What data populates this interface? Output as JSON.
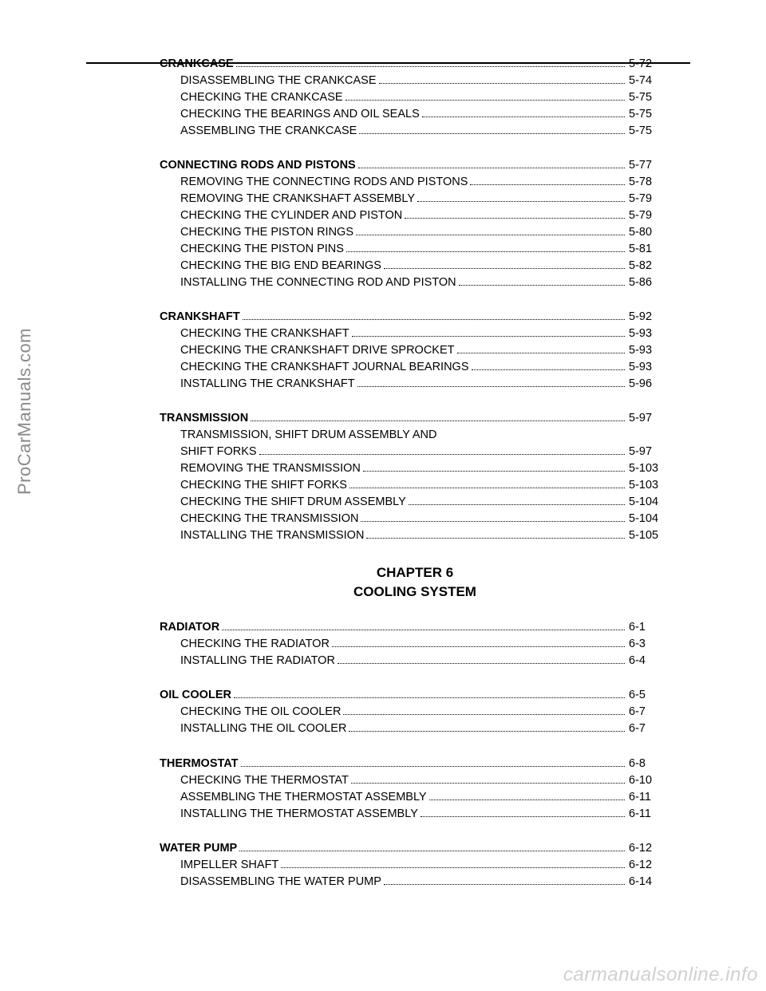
{
  "sideText": "ProCarManuals.com",
  "watermark": "carmanualsonline.info",
  "chapter": {
    "num": "CHAPTER 6",
    "title": "COOLING SYSTEM"
  },
  "sections": [
    {
      "head": {
        "label": "CRANKCASE",
        "page": "5-72"
      },
      "items": [
        {
          "label": "DISASSEMBLING THE CRANKCASE",
          "page": "5-74"
        },
        {
          "label": "CHECKING THE CRANKCASE",
          "page": "5-75"
        },
        {
          "label": "CHECKING THE BEARINGS AND OIL SEALS",
          "page": "5-75"
        },
        {
          "label": "ASSEMBLING THE CRANKCASE",
          "page": "5-75"
        }
      ]
    },
    {
      "head": {
        "label": "CONNECTING RODS AND PISTONS",
        "page": "5-77"
      },
      "items": [
        {
          "label": "REMOVING THE CONNECTING RODS AND PISTONS",
          "page": "5-78"
        },
        {
          "label": "REMOVING THE CRANKSHAFT ASSEMBLY",
          "page": "5-79"
        },
        {
          "label": "CHECKING THE CYLINDER AND PISTON",
          "page": "5-79"
        },
        {
          "label": "CHECKING THE PISTON RINGS",
          "page": "5-80"
        },
        {
          "label": "CHECKING THE PISTON PINS",
          "page": "5-81"
        },
        {
          "label": "CHECKING THE BIG END BEARINGS",
          "page": "5-82"
        },
        {
          "label": "INSTALLING THE CONNECTING ROD AND PISTON",
          "page": "5-86"
        }
      ]
    },
    {
      "head": {
        "label": "CRANKSHAFT",
        "page": "5-92"
      },
      "items": [
        {
          "label": "CHECKING THE CRANKSHAFT",
          "page": "5-93"
        },
        {
          "label": "CHECKING THE CRANKSHAFT DRIVE SPROCKET",
          "page": "5-93"
        },
        {
          "label": "CHECKING THE CRANKSHAFT JOURNAL BEARINGS",
          "page": "5-93"
        },
        {
          "label": "INSTALLING THE CRANKSHAFT",
          "page": "5-96"
        }
      ]
    },
    {
      "head": {
        "label": "TRANSMISSION",
        "page": "5-97"
      },
      "items": [
        {
          "label": "TRANSMISSION, SHIFT DRUM ASSEMBLY AND",
          "nopg": true
        },
        {
          "label": "SHIFT FORKS",
          "page": "5-97"
        },
        {
          "label": "REMOVING THE TRANSMISSION",
          "page": "5-103"
        },
        {
          "label": "CHECKING THE SHIFT FORKS",
          "page": "5-103"
        },
        {
          "label": "CHECKING THE SHIFT DRUM ASSEMBLY",
          "page": "5-104"
        },
        {
          "label": "CHECKING THE TRANSMISSION",
          "page": "5-104"
        },
        {
          "label": "INSTALLING THE TRANSMISSION",
          "page": "5-105"
        }
      ]
    }
  ],
  "chapter6": [
    {
      "head": {
        "label": "RADIATOR",
        "page": "6-1"
      },
      "items": [
        {
          "label": "CHECKING THE RADIATOR",
          "page": "6-3"
        },
        {
          "label": "INSTALLING THE RADIATOR",
          "page": "6-4"
        }
      ]
    },
    {
      "head": {
        "label": "OIL COOLER",
        "page": "6-5"
      },
      "items": [
        {
          "label": "CHECKING THE OIL COOLER",
          "page": "6-7"
        },
        {
          "label": "INSTALLING THE OIL COOLER",
          "page": "6-7"
        }
      ]
    },
    {
      "head": {
        "label": "THERMOSTAT",
        "page": "6-8"
      },
      "items": [
        {
          "label": "CHECKING THE THERMOSTAT",
          "page": "6-10"
        },
        {
          "label": "ASSEMBLING THE THERMOSTAT ASSEMBLY",
          "page": "6-11"
        },
        {
          "label": "INSTALLING THE THERMOSTAT ASSEMBLY",
          "page": "6-11"
        }
      ]
    },
    {
      "head": {
        "label": "WATER PUMP",
        "page": "6-12"
      },
      "items": [
        {
          "label": "IMPELLER SHAFT",
          "page": "6-12"
        },
        {
          "label": "DISASSEMBLING THE WATER PUMP",
          "page": "6-14"
        }
      ]
    }
  ]
}
